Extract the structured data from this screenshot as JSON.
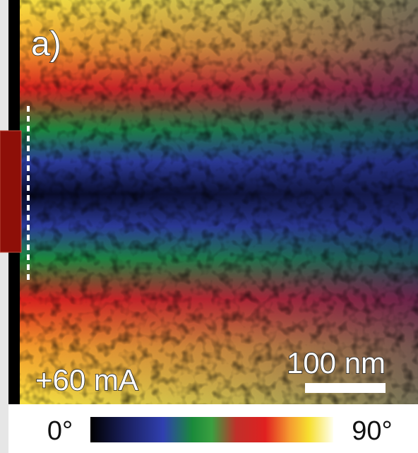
{
  "panel_label": "a)",
  "current_label": "+60 mA",
  "scale_bar": "100 nm",
  "colorbar": {
    "min_label": "0°",
    "max_label": "90°"
  }
}
